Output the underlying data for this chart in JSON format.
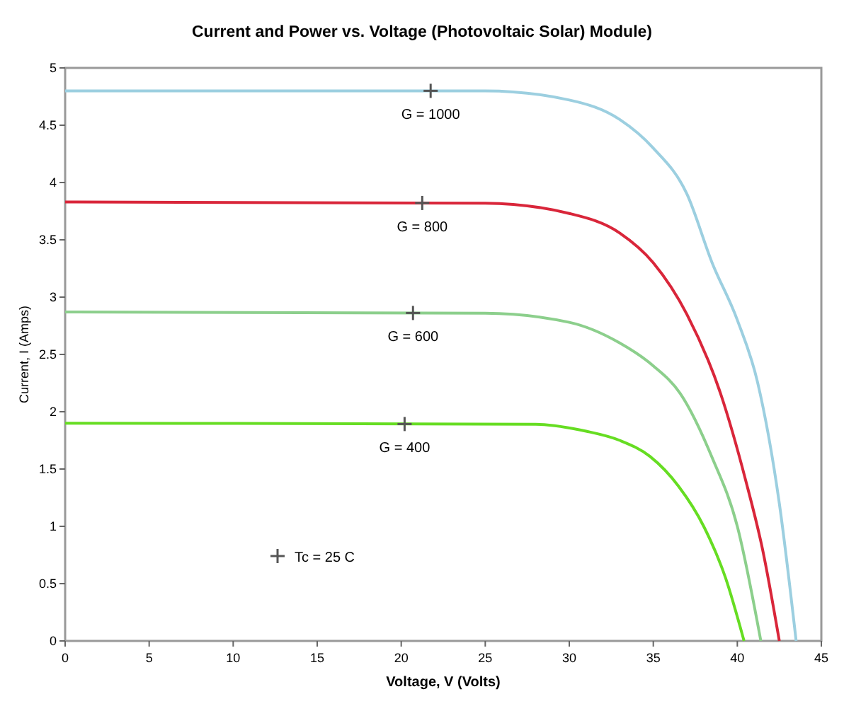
{
  "chart_data": {
    "type": "line",
    "title": "Current and Power vs. Voltage (Photovoltaic Solar) Module)",
    "xlabel": "Voltage, V (Volts)",
    "ylabel": "Current, I (Amps)",
    "xlim": [
      0,
      45
    ],
    "xticks": [
      0,
      5,
      10,
      15,
      20,
      25,
      30,
      35,
      40,
      45
    ],
    "ylim": [
      0,
      5
    ],
    "yticks": [
      0,
      0.5,
      1,
      1.5,
      2,
      2.5,
      3,
      3.5,
      4,
      4.5,
      5
    ],
    "grid": false,
    "line_style": "solid",
    "series": [
      {
        "name": "G = 1000",
        "color": "#9ccfe0",
        "x": [
          0,
          25,
          30,
          33,
          35,
          37,
          38.5,
          40,
          41.2,
          42.5,
          43.5
        ],
        "values": [
          4.8,
          4.8,
          4.72,
          4.55,
          4.3,
          3.9,
          3.3,
          2.8,
          2.26,
          1.2,
          0
        ]
      },
      {
        "name": "G = 800",
        "color": "#d9263a",
        "x": [
          0,
          25,
          30,
          33,
          35,
          37,
          39,
          40.5,
          41.5,
          42.5
        ],
        "values": [
          3.83,
          3.82,
          3.73,
          3.56,
          3.3,
          2.85,
          2.16,
          1.4,
          0.8,
          0
        ]
      },
      {
        "name": "G = 600",
        "color": "#8ccf8c",
        "x": [
          0,
          25,
          30,
          33,
          35,
          36.6,
          38.5,
          40,
          41.4
        ],
        "values": [
          2.87,
          2.86,
          2.78,
          2.6,
          2.4,
          2.16,
          1.6,
          1.0,
          0
        ]
      },
      {
        "name": "G = 400",
        "color": "#66dd22",
        "x": [
          0,
          28,
          31,
          33,
          34.8,
          36.5,
          38,
          39.3,
          40.4
        ],
        "values": [
          1.9,
          1.89,
          1.83,
          1.75,
          1.61,
          1.35,
          1.0,
          0.55,
          0
        ]
      }
    ],
    "annotations": [
      "Tc = 25 C"
    ]
  }
}
